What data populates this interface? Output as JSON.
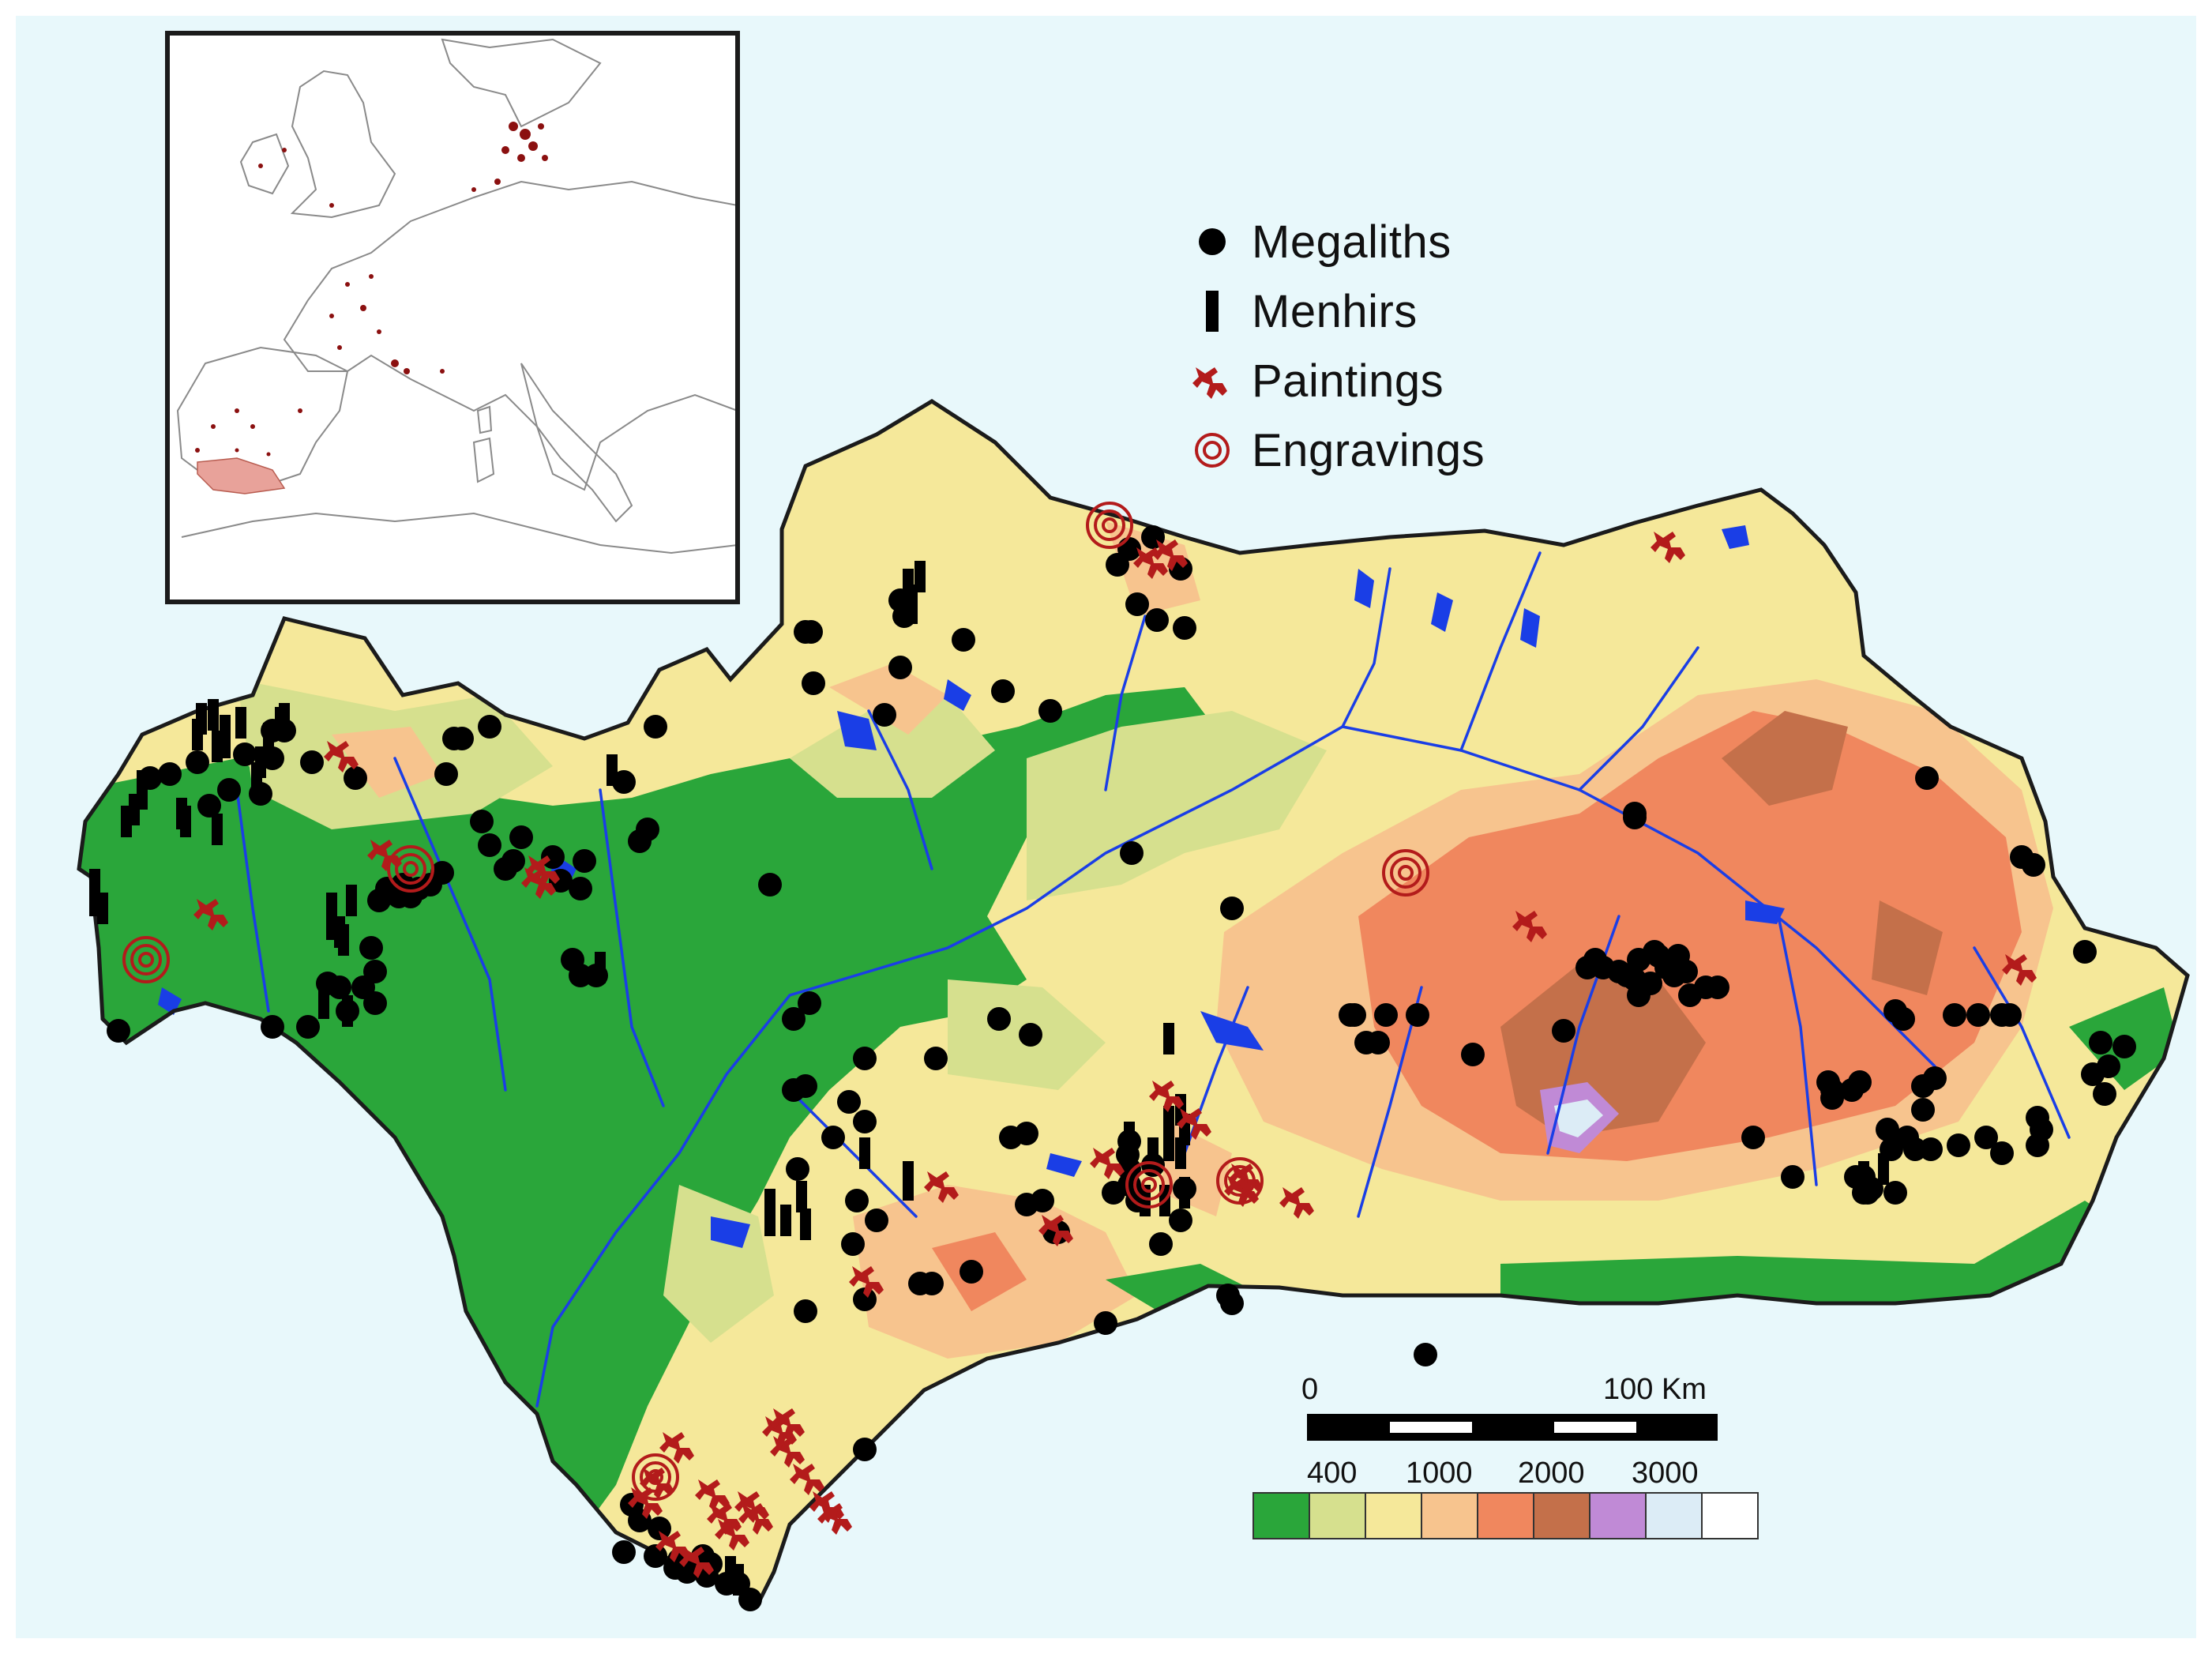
{
  "legend": {
    "megaliths": "Megaliths",
    "menhirs": "Menhirs",
    "paintings": "Paintings",
    "engravings": "Engravings"
  },
  "scale_bar": {
    "start": "0",
    "end": "100 Km"
  },
  "elevation_legend": {
    "labels": [
      "400",
      "1000",
      "2000",
      "3000"
    ],
    "colors": [
      "#2aa63a",
      "#d6e08e",
      "#f5e89a",
      "#f7c48e",
      "#f0875e",
      "#c4704a",
      "#c08ad6",
      "#dcecf6",
      "#ffffff"
    ]
  },
  "colors": {
    "sea": "#e8f8fb",
    "site_marker": "#000000",
    "painting_and_engraving": "#b31b1b",
    "rivers": "#1a3ee6"
  }
}
